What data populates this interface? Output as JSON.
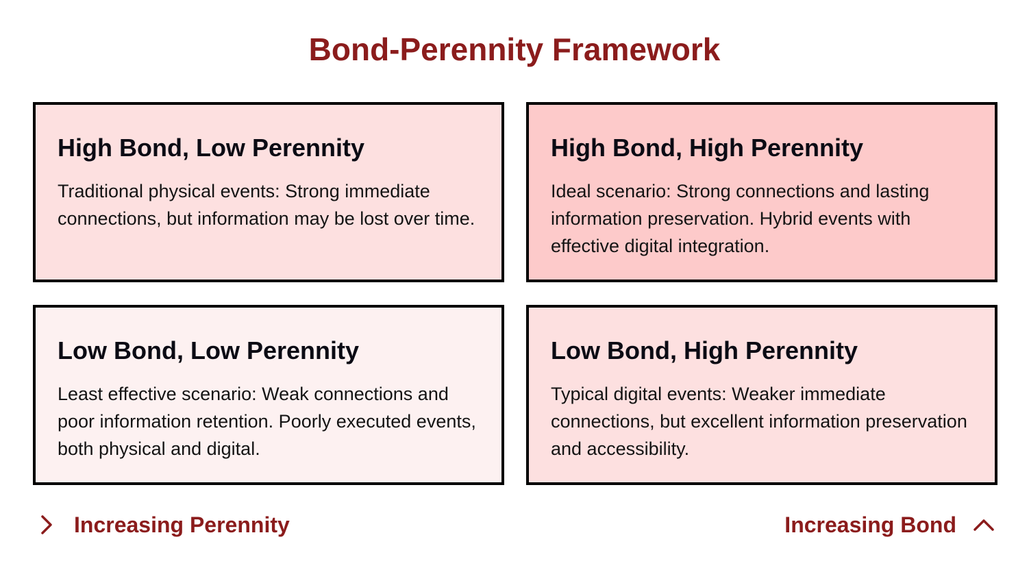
{
  "title": "Bond-Perennity Framework",
  "quadrants": [
    {
      "heading": "High Bond, Low Perennity",
      "text": "Traditional physical events: Strong immediate connections, but information may be lost over time.",
      "color": "#fde0e0"
    },
    {
      "heading": "High Bond, High Perennity",
      "text": "Ideal scenario: Strong connections and lasting information preservation. Hybrid events with effective digital integration.",
      "color": "#fdcaca"
    },
    {
      "heading": "Low Bond, Low Perennity",
      "text": "Least effective scenario: Weak connections and poor information retention. Poorly executed events, both physical and digital.",
      "color": "#fdf1f1"
    },
    {
      "heading": "Low Bond, High Perennity",
      "text": "Typical digital events: Weaker immediate connections, but excellent information preservation and accessibility.",
      "color": "#fde0e0"
    }
  ],
  "axes": {
    "horizontal": {
      "label": "Increasing Perennity",
      "icon": "chevron-right-icon"
    },
    "vertical": {
      "label": "Increasing Bond",
      "icon": "chevron-up-icon"
    }
  },
  "colors": {
    "accent": "#8b1c1c",
    "border": "#000000"
  }
}
